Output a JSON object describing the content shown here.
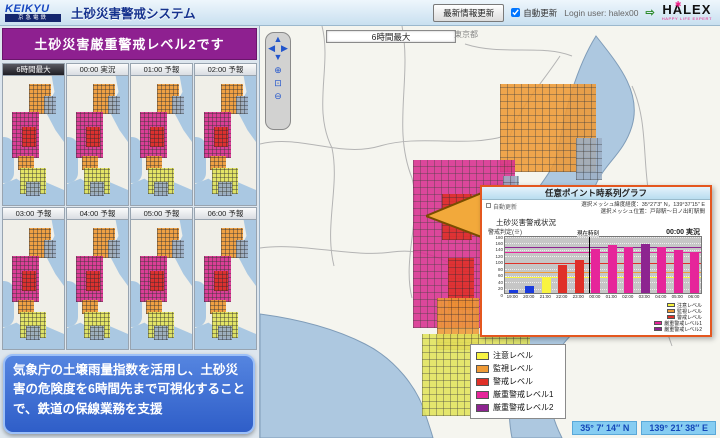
{
  "header": {
    "logo_main": "KEIKYU",
    "logo_sub": "京急電鉄",
    "app_title": "土砂災害警戒システム",
    "refresh_button": "最新情報更新",
    "auto_update_label": "自動更新",
    "login_label": "Login user:",
    "login_user": "halex00",
    "halex_logo": "HALEX",
    "halex_tagline": "HAPPY LIFE EXPERT"
  },
  "alert_banner": "土砂災害厳重警戒レベル2です",
  "thumbnails": [
    {
      "label": "6時間最大",
      "selected": true
    },
    {
      "label": "00:00 実況",
      "selected": false
    },
    {
      "label": "01:00 予報",
      "selected": false
    },
    {
      "label": "02:00 予報",
      "selected": false
    },
    {
      "label": "03:00 予報",
      "selected": false
    },
    {
      "label": "04:00 予報",
      "selected": false
    },
    {
      "label": "05:00 予報",
      "selected": false
    },
    {
      "label": "06:00 予報",
      "selected": false
    }
  ],
  "info_box": "気象庁の土壌雨量指数を活用し、土砂災害の危険度を6時間先まで可視化することで、鉄道の保線業務を支援",
  "map": {
    "time_selector": "6時間最大",
    "area_label": "東京都",
    "status_lat": "35° 7′ 14″ N",
    "status_lon": "139° 21′ 38″ E"
  },
  "legend": {
    "items": [
      {
        "label": "注意レベル",
        "color": "#f8f440"
      },
      {
        "label": "監視レベル",
        "color": "#ef9a36"
      },
      {
        "label": "警戒レベル",
        "color": "#e03028"
      },
      {
        "label": "厳重警戒レベル1",
        "color": "#e6259a"
      },
      {
        "label": "厳重警戒レベル2",
        "color": "#8d2490"
      }
    ]
  },
  "popup": {
    "title": "任意ポイント時系列グラフ",
    "auto_update_label": "自動更新",
    "mesh_latlon": "選択メッシュ緯度経度：35°27′3″ N，139°37′15″ E",
    "mesh_location": "選択メッシュ位置：戸部駅～日ノ出町駅間",
    "section_label": "土砂災害警戒状況",
    "now_label": "現在時刻"
  },
  "chart_data": {
    "type": "bar",
    "title": "任意ポイント時系列グラフ",
    "categories": [
      "19:00",
      "20:00",
      "21:00",
      "22:00",
      "23:00",
      "00:00",
      "01:00",
      "02:00",
      "03:00",
      "04:00",
      "05:00",
      "06:00"
    ],
    "values": [
      8,
      22,
      48,
      88,
      103,
      138,
      148,
      142,
      152,
      142,
      134,
      124
    ],
    "bar_colors": [
      "#1a3bdd",
      "#1a3bdd",
      "#f8f440",
      "#e03028",
      "#e03028",
      "#e6259a",
      "#e6259a",
      "#e6259a",
      "#8d2490",
      "#e6259a",
      "#e6259a",
      "#e6259a"
    ],
    "ylabel": "警戒判定(※)",
    "xlabel": "",
    "time_label": "00:00 実況",
    "ylim": [
      0,
      180
    ],
    "y_tick_step": 20,
    "grid": true,
    "legend_position": "bottom-right",
    "thresholds": [
      {
        "label": "注意レベル",
        "value": 55,
        "color": "#f8f440"
      },
      {
        "label": "監視レベル",
        "value": 72,
        "color": "#ef9a36"
      },
      {
        "label": "警戒レベル",
        "value": 100,
        "color": "#e03028"
      },
      {
        "label": "厳重警戒レベル1",
        "value": 135,
        "color": "#e6259a"
      },
      {
        "label": "厳重警戒レベル2",
        "value": 150,
        "color": "#8d2490"
      }
    ],
    "current_time_index": 5
  }
}
